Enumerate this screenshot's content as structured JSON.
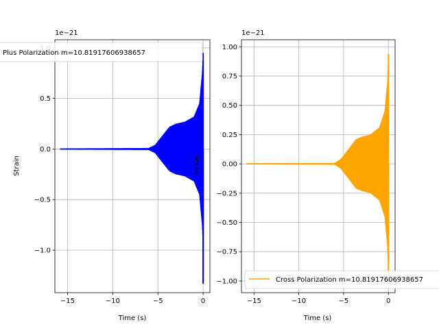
{
  "chart_data": [
    {
      "type": "line",
      "xlabel": "Time (s)",
      "ylabel": "Strain",
      "offset_text": "1e−21",
      "xlim": [
        -16.4,
        0.75
      ],
      "ylim": [
        -1.42,
        1.08
      ],
      "xticks": [
        -15,
        -10,
        -5,
        0
      ],
      "xtick_labels": [
        "−15",
        "−10",
        "−5",
        "0"
      ],
      "yticks": [
        -1.0,
        -0.5,
        0.0,
        0.5,
        1.0
      ],
      "ytick_labels": [
        "−1.0",
        "−0.5",
        "0.0",
        "0.5",
        "1.0"
      ],
      "grid": true,
      "legend_loc": "upper-left",
      "series": [
        {
          "name": "Plus Polarization m=10.81917606938657",
          "color": "#0000ff",
          "t_start": -15.8,
          "t_end": 0.05,
          "envelope": [
            {
              "t": -15.8,
              "amp": 0.006
            },
            {
              "t": -6.0,
              "amp": 0.01
            },
            {
              "t": -5.3,
              "amp": 0.04
            },
            {
              "t": -4.6,
              "amp": 0.12
            },
            {
              "t": -3.7,
              "amp": 0.22
            },
            {
              "t": -3.0,
              "amp": 0.25
            },
            {
              "t": -2.0,
              "amp": 0.27
            },
            {
              "t": -1.0,
              "amp": 0.32
            },
            {
              "t": -0.4,
              "amp": 0.45
            },
            {
              "t": -0.1,
              "amp": 0.75
            },
            {
              "t": 0.0,
              "amp": 0.95
            },
            {
              "t": 0.05,
              "amp": 0.0
            }
          ],
          "peak_max": 0.95,
          "peak_min": -1.33
        }
      ]
    },
    {
      "type": "line",
      "xlabel": "Time (s)",
      "ylabel": "Strain",
      "offset_text": "1e−21",
      "xlim": [
        -16.4,
        0.75
      ],
      "ylim": [
        -1.1,
        1.06
      ],
      "xticks": [
        -15,
        -10,
        -5,
        0
      ],
      "xtick_labels": [
        "−15",
        "−10",
        "−5",
        "0"
      ],
      "yticks": [
        -1.0,
        -0.75,
        -0.5,
        -0.25,
        0.0,
        0.25,
        0.5,
        0.75,
        1.0
      ],
      "ytick_labels": [
        "−1.00",
        "−0.75",
        "−0.50",
        "−0.25",
        "0.00",
        "0.25",
        "0.50",
        "0.75",
        "1.00"
      ],
      "grid": true,
      "legend_loc": "lower-left",
      "series": [
        {
          "name": "Cross Polarization m=10.81917606938657",
          "color": "#ffa500",
          "t_start": -15.8,
          "t_end": 0.05,
          "envelope": [
            {
              "t": -15.8,
              "amp": 0.005
            },
            {
              "t": -6.0,
              "amp": 0.008
            },
            {
              "t": -5.3,
              "amp": 0.04
            },
            {
              "t": -4.5,
              "amp": 0.12
            },
            {
              "t": -3.6,
              "amp": 0.21
            },
            {
              "t": -3.0,
              "amp": 0.23
            },
            {
              "t": -2.0,
              "amp": 0.25
            },
            {
              "t": -1.0,
              "amp": 0.31
            },
            {
              "t": -0.4,
              "amp": 0.45
            },
            {
              "t": -0.1,
              "amp": 0.7
            },
            {
              "t": 0.0,
              "amp": 0.95
            },
            {
              "t": 0.05,
              "amp": 0.0
            }
          ],
          "peak_max": 0.94,
          "peak_min": -0.98
        }
      ]
    }
  ]
}
